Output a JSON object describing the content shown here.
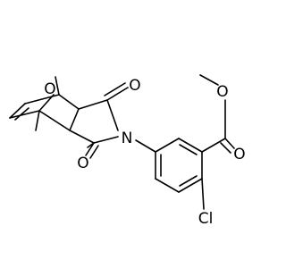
{
  "atom_labels": [
    "O",
    "O",
    "O",
    "N",
    "O",
    "O",
    "Cl"
  ]
}
